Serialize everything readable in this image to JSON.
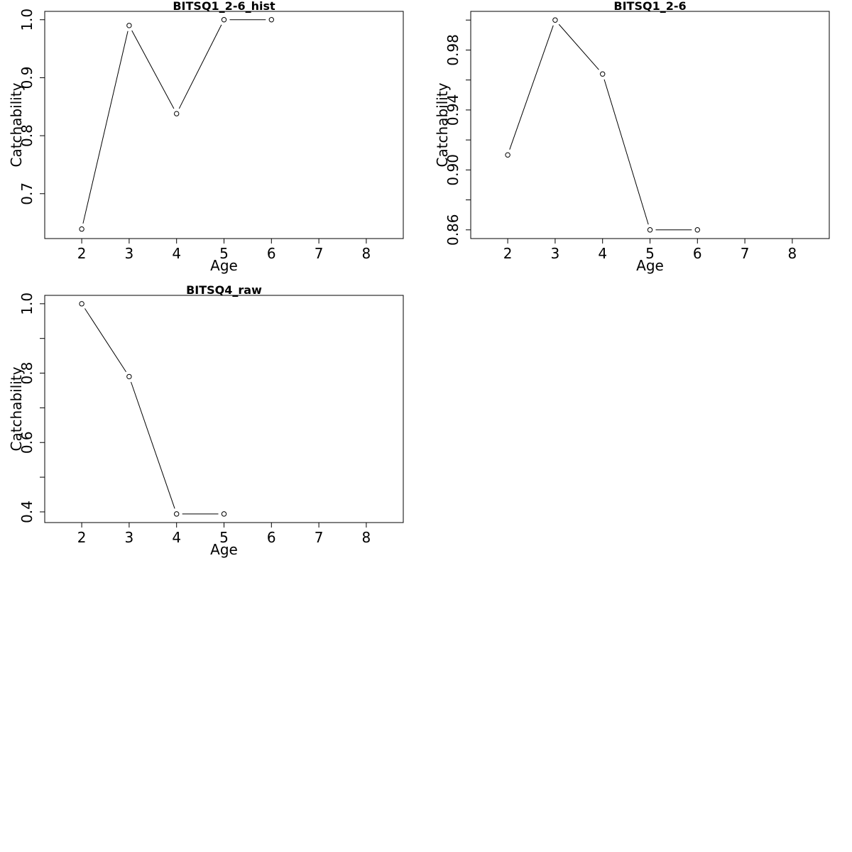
{
  "chart_data": [
    {
      "type": "line",
      "title": "BITSQ1_2-6_hist",
      "xlabel": "Age",
      "ylabel": "Catchability",
      "xlim": [
        1.22,
        8.78
      ],
      "ylim": [
        0.6226,
        1.0144
      ],
      "xticks": [
        2,
        3,
        4,
        5,
        6,
        7,
        8
      ],
      "xtick_labels": [
        "2",
        "3",
        "4",
        "5",
        "6",
        "7",
        "8"
      ],
      "yticks": [
        0.7,
        0.8,
        0.9,
        1.0
      ],
      "ytick_labels": [
        "0.7",
        "0.8",
        "0.9",
        "1.0"
      ],
      "y_minor_ticks": [],
      "series": [
        {
          "x": [
            2,
            3,
            4,
            5,
            6
          ],
          "y": [
            0.639,
            0.99,
            0.838,
            1.0,
            1.0
          ]
        }
      ],
      "marker": "open-circle",
      "grid": false
    },
    {
      "type": "line",
      "title": "BITSQ1_2-6",
      "xlabel": "Age",
      "ylabel": "Catchability",
      "xlim": [
        1.22,
        8.78
      ],
      "ylim": [
        0.8542,
        1.0058
      ],
      "xticks": [
        2,
        3,
        4,
        5,
        6,
        7,
        8
      ],
      "xtick_labels": [
        "2",
        "3",
        "4",
        "5",
        "6",
        "7",
        "8"
      ],
      "yticks": [
        0.86,
        0.9,
        0.94,
        0.98
      ],
      "ytick_labels": [
        "0.86",
        "0.90",
        "0.94",
        "0.98"
      ],
      "y_minor_ticks": [
        0.88,
        0.92,
        0.96,
        1.0
      ],
      "series": [
        {
          "x": [
            2,
            3,
            4,
            5,
            6
          ],
          "y": [
            0.91,
            1.0,
            0.964,
            0.86,
            0.86
          ]
        }
      ],
      "marker": "open-circle",
      "grid": false
    },
    {
      "type": "line",
      "title": "BITSQ4_raw",
      "xlabel": "Age",
      "ylabel": "Catchability",
      "xlim": [
        1.22,
        8.78
      ],
      "ylim": [
        0.3692,
        1.0242
      ],
      "xticks": [
        2,
        3,
        4,
        5,
        6,
        7,
        8
      ],
      "xtick_labels": [
        "2",
        "3",
        "4",
        "5",
        "6",
        "7",
        "8"
      ],
      "yticks": [
        0.4,
        0.6,
        0.8,
        1.0
      ],
      "ytick_labels": [
        "0.4",
        "0.6",
        "0.8",
        "1.0"
      ],
      "y_minor_ticks": [
        0.5,
        0.7,
        0.9
      ],
      "series": [
        {
          "x": [
            2,
            3,
            4,
            5
          ],
          "y": [
            1.0,
            0.79,
            0.394,
            0.394
          ]
        }
      ],
      "marker": "open-circle",
      "grid": false
    }
  ]
}
